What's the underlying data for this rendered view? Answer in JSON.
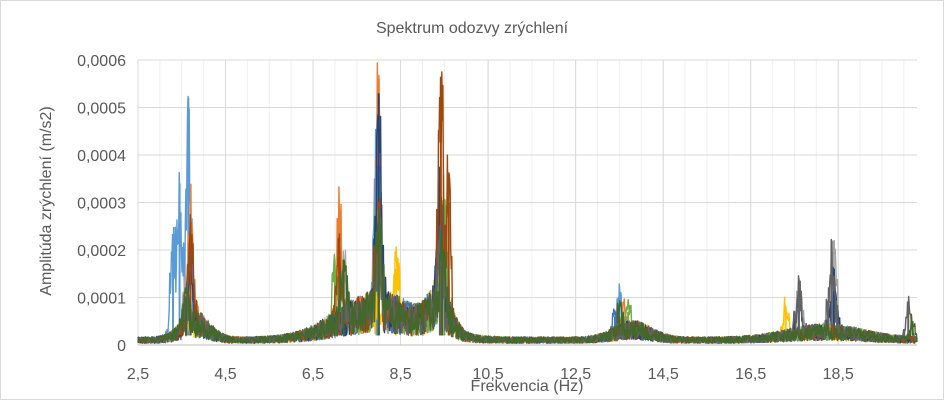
{
  "chart_data": {
    "type": "line",
    "title": "Spektrum odozvy zrýchlení",
    "xlabel": "Frekvencia (Hz)",
    "ylabel": "Amplitúda zrýchlení (m/s2)",
    "xlim": [
      2.5,
      20.3
    ],
    "ylim": [
      0,
      0.0006
    ],
    "x_ticks": [
      2.5,
      4.5,
      6.5,
      8.5,
      10.5,
      12.5,
      14.5,
      16.5,
      18.5
    ],
    "x_tick_labels": [
      "2,5",
      "4,5",
      "6,5",
      "8,5",
      "10,5",
      "12,5",
      "14,5",
      "16,5",
      "18,5"
    ],
    "y_ticks": [
      0,
      0.0001,
      0.0002,
      0.0003,
      0.0004,
      0.0005,
      0.0006
    ],
    "y_tick_labels": [
      "0",
      "0,0001",
      "0,0002",
      "0,0003",
      "0,0004",
      "0,0005",
      "0,0006"
    ],
    "grid": true,
    "legend": "none",
    "series_colors": [
      "#5b9bd5",
      "#ed7d31",
      "#a5a5a5",
      "#ffc000",
      "#4472c4",
      "#70ad47",
      "#264478",
      "#9e480e",
      "#636363",
      "#43682b"
    ],
    "series": [
      {
        "color": "#5b9bd5",
        "peaks": [
          [
            3.65,
            0.00052
          ],
          [
            3.45,
            0.00034
          ],
          [
            3.3,
            0.00022
          ],
          [
            7.95,
            0.00044
          ],
          [
            9.4,
            0.00018
          ],
          [
            13.5,
            0.0001
          ],
          [
            18.4,
            8e-05
          ]
        ]
      },
      {
        "color": "#ed7d31",
        "peaks": [
          [
            3.7,
            0.00029
          ],
          [
            7.1,
            0.00028
          ],
          [
            8.0,
            0.00056
          ],
          [
            9.45,
            0.00028
          ],
          [
            13.6,
            6e-05
          ]
        ]
      },
      {
        "color": "#a5a5a5",
        "peaks": [
          [
            3.6,
            0.00012
          ],
          [
            7.2,
            0.00014
          ],
          [
            8.0,
            0.0003
          ],
          [
            9.4,
            0.00022
          ],
          [
            18.4,
            0.00022
          ],
          [
            17.6,
            0.00011
          ]
        ]
      },
      {
        "color": "#ffc000",
        "peaks": [
          [
            3.6,
            9e-05
          ],
          [
            8.4,
            0.00016
          ],
          [
            9.4,
            0.00012
          ],
          [
            17.3,
            8e-05
          ]
        ]
      },
      {
        "color": "#4472c4",
        "peaks": [
          [
            3.7,
            0.0002
          ],
          [
            8.0,
            0.00036
          ],
          [
            9.4,
            0.0003
          ],
          [
            13.4,
            6e-05
          ]
        ]
      },
      {
        "color": "#70ad47",
        "peaks": [
          [
            3.6,
            8e-05
          ],
          [
            7.0,
            0.00016
          ],
          [
            8.0,
            0.00032
          ],
          [
            9.5,
            0.0003
          ],
          [
            13.7,
            7e-05
          ]
        ]
      },
      {
        "color": "#264478",
        "peaks": [
          [
            3.7,
            0.00015
          ],
          [
            8.0,
            0.00053
          ],
          [
            9.4,
            0.00032
          ],
          [
            18.4,
            0.00016
          ],
          [
            17.6,
            0.00012
          ]
        ]
      },
      {
        "color": "#9e480e",
        "peaks": [
          [
            3.7,
            0.00026
          ],
          [
            7.1,
            0.00018
          ],
          [
            8.0,
            0.0003
          ],
          [
            9.42,
            0.000565
          ],
          [
            9.6,
            0.0003
          ]
        ]
      },
      {
        "color": "#636363",
        "peaks": [
          [
            3.6,
            0.0001
          ],
          [
            8.0,
            0.0002
          ],
          [
            9.4,
            0.00016
          ],
          [
            18.35,
            0.00022
          ],
          [
            17.6,
            0.00013
          ],
          [
            20.1,
            9e-05
          ]
        ]
      },
      {
        "color": "#43682b",
        "peaks": [
          [
            3.6,
            0.0001
          ],
          [
            7.2,
            0.00018
          ],
          [
            8.0,
            0.00025
          ],
          [
            9.45,
            0.0002
          ],
          [
            13.5,
            6e-05
          ],
          [
            20.2,
            5e-05
          ]
        ]
      }
    ]
  }
}
